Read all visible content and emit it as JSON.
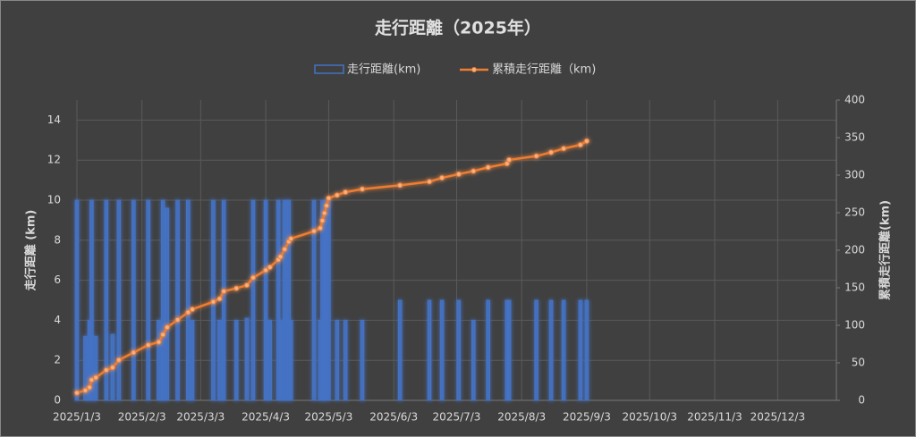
{
  "chart_data": {
    "type": "bar",
    "title": "走行距離（2025年）",
    "y_label": "走行距離 (km)",
    "y2_label": "累積走行距離(km)",
    "x": [
      "2025/1/3",
      "2025/1/7",
      "2025/1/9",
      "2025/1/10",
      "2025/1/12",
      "2025/1/17",
      "2025/1/20",
      "2025/1/23",
      "2025/1/30",
      "2025/2/6",
      "2025/2/11",
      "2025/2/13",
      "2025/2/15",
      "2025/2/20",
      "2025/2/25",
      "2025/2/27",
      "2025/3/9",
      "2025/3/12",
      "2025/3/14",
      "2025/3/20",
      "2025/3/25",
      "2025/3/28",
      "2025/4/3",
      "2025/4/5",
      "2025/4/9",
      "2025/4/10",
      "2025/4/12",
      "2025/4/14",
      "2025/4/15",
      "2025/4/26",
      "2025/4/29",
      "2025/4/30",
      "2025/5/1",
      "2025/5/2",
      "2025/5/3",
      "2025/5/7",
      "2025/5/11",
      "2025/5/19",
      "2025/6/6",
      "2025/6/20",
      "2025/6/26",
      "2025/7/4",
      "2025/7/11",
      "2025/7/18",
      "2025/7/27",
      "2025/7/28",
      "2025/8/10",
      "2025/8/17",
      "2025/8/23",
      "2025/8/31",
      "2025/9/3"
    ],
    "series": [
      {
        "name": "走行距離(km)",
        "type": "bar",
        "color": "#4472c4",
        "values": [
          10,
          3.2,
          4,
          10,
          3.2,
          10,
          3.3,
          10,
          10,
          10,
          4,
          10,
          9.6,
          10,
          10,
          4,
          10,
          4,
          10,
          4,
          4.1,
          10,
          10,
          4,
          10,
          4,
          10,
          10,
          4,
          10,
          4,
          10,
          10,
          10,
          10,
          4,
          4,
          4,
          5,
          5,
          5,
          5,
          4,
          5,
          5,
          5,
          5,
          5,
          5,
          5,
          5
        ]
      },
      {
        "name": "累積走行距離（km)",
        "type": "line",
        "axis": "y2",
        "color": "#ed7d31",
        "values": [
          10,
          13.2,
          17.2,
          27.2,
          30.4,
          40.4,
          43.7,
          53.7,
          63.7,
          73.7,
          77.7,
          87.7,
          97.3,
          107.3,
          117.3,
          121.3,
          131.3,
          135.3,
          145.3,
          149.3,
          153.4,
          163.4,
          173.4,
          177.4,
          187.4,
          191.4,
          201.4,
          211.4,
          215.4,
          225.4,
          229.4,
          239.4,
          249.4,
          259.4,
          269.4,
          273.4,
          277.4,
          281.4,
          286.4,
          291.4,
          296.4,
          301.4,
          305.4,
          310.4,
          315.4,
          320.4,
          325.4,
          330.4,
          335.4,
          340.4,
          345.4
        ]
      }
    ],
    "xlim": [
      "2025/1/3",
      "2025/12/31"
    ],
    "xticks": [
      "2025/1/3",
      "2025/2/3",
      "2025/3/3",
      "2025/4/3",
      "2025/5/3",
      "2025/6/3",
      "2025/7/3",
      "2025/8/3",
      "2025/9/3",
      "2025/10/3",
      "2025/11/3",
      "2025/12/3"
    ],
    "ylim": [
      0,
      15
    ],
    "yticks": [
      0,
      2,
      4,
      6,
      8,
      10,
      12,
      14
    ],
    "y2lim": [
      0,
      400
    ],
    "y2ticks": [
      0,
      50,
      100,
      150,
      200,
      250,
      300,
      350,
      400
    ],
    "grid": true,
    "legend": "top"
  }
}
